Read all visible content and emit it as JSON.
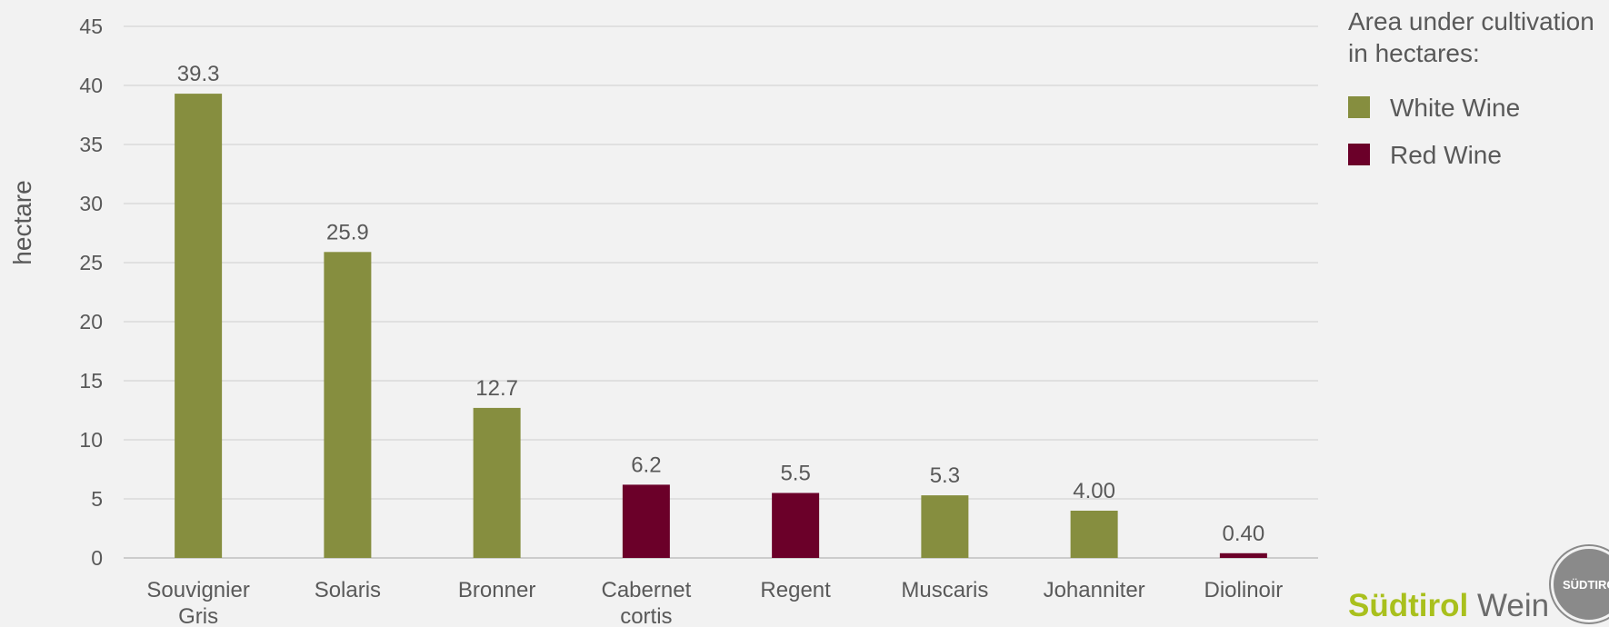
{
  "chart_data": {
    "type": "bar",
    "ylabel": "hectare",
    "ylim": [
      0,
      45
    ],
    "yticks": [
      0,
      5,
      10,
      15,
      20,
      25,
      30,
      35,
      40,
      45
    ],
    "grid": true,
    "legend_position": "top-right",
    "categories": [
      [
        "Souvignier",
        "Gris"
      ],
      [
        "Solaris"
      ],
      [
        "Bronner"
      ],
      [
        "Cabernet",
        "cortis"
      ],
      [
        "Regent"
      ],
      [
        "Muscaris"
      ],
      [
        "Johanniter"
      ],
      [
        "Diolinoir"
      ]
    ],
    "values": [
      39.3,
      25.9,
      12.7,
      6.2,
      5.5,
      5.3,
      4.0,
      0.4
    ],
    "data_labels": [
      "39.3",
      "25.9",
      "12.7",
      "6.2",
      "5.5",
      "5.3",
      "4.00",
      "0.40"
    ],
    "series_of_bar": [
      "white",
      "white",
      "white",
      "red",
      "red",
      "white",
      "white",
      "red"
    ],
    "legend": {
      "title_lines": [
        "Area under cultivation",
        "in hectares:"
      ],
      "items": [
        {
          "key": "white",
          "label": "White Wine",
          "color": "#868e3f"
        },
        {
          "key": "red",
          "label": "Red Wine",
          "color": "#6b0029"
        }
      ]
    }
  },
  "logo": {
    "part1": "Südtirol",
    "part2": "Wein",
    "seal_text": "SÜDTIRO"
  }
}
